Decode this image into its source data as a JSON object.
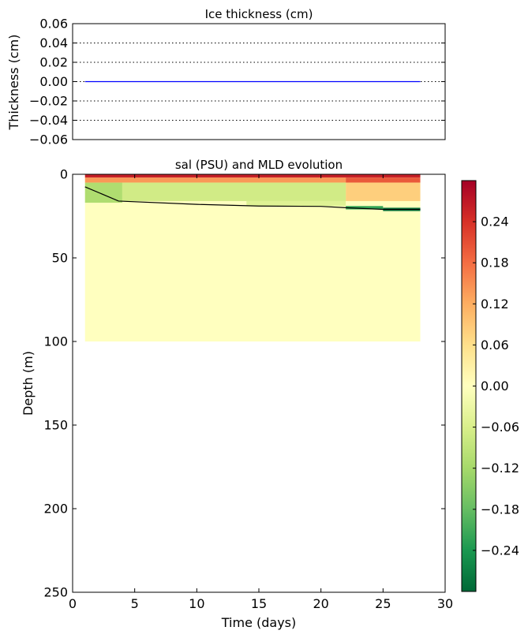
{
  "chart_data": [
    {
      "type": "line",
      "title": "Ice thickness (cm)",
      "ylabel": "Thickness (cm)",
      "xlim": [
        0,
        30
      ],
      "ylim": [
        -0.06,
        0.06
      ],
      "grid": "horizontal-dotted",
      "yticks": [
        "0.06",
        "0.04",
        "0.02",
        "0.00",
        "−0.02",
        "−0.04",
        "−0.06"
      ],
      "ytick_values": [
        0.06,
        0.04,
        0.02,
        0.0,
        -0.02,
        -0.04,
        -0.06
      ],
      "series": [
        {
          "color": "#0000ff",
          "x": [
            1,
            28
          ],
          "y": [
            0.0,
            0.0
          ]
        }
      ]
    },
    {
      "type": "heatmap",
      "title": "sal (PSU) and MLD evolution",
      "xlabel": "Time (days)",
      "ylabel": "Depth (m)",
      "xlim": [
        0,
        30
      ],
      "ylim": [
        250,
        0
      ],
      "xticks": [
        "0",
        "5",
        "10",
        "15",
        "20",
        "25",
        "30"
      ],
      "xtick_values": [
        0,
        5,
        10,
        15,
        20,
        25,
        30
      ],
      "yticks": [
        "0",
        "50",
        "100",
        "150",
        "200",
        "250"
      ],
      "ytick_values": [
        0,
        50,
        100,
        150,
        200,
        250
      ],
      "field_extent": {
        "x": [
          1,
          28
        ],
        "depth": [
          0,
          100
        ]
      },
      "background_value": 0.0,
      "regions": [
        {
          "x": [
            1,
            28
          ],
          "depth": [
            0,
            2
          ],
          "value": 0.26
        },
        {
          "x": [
            1,
            22
          ],
          "depth": [
            2,
            5
          ],
          "value": 0.14
        },
        {
          "x": [
            22,
            28
          ],
          "depth": [
            2,
            5
          ],
          "value": 0.2
        },
        {
          "x": [
            22,
            28
          ],
          "depth": [
            5,
            16
          ],
          "value": 0.08
        },
        {
          "x": [
            1,
            4
          ],
          "depth": [
            5,
            17
          ],
          "value": -0.11
        },
        {
          "x": [
            4,
            22
          ],
          "depth": [
            5,
            16
          ],
          "value": -0.07
        },
        {
          "x": [
            14,
            22
          ],
          "depth": [
            16,
            19
          ],
          "value": -0.05
        },
        {
          "x": [
            22,
            25
          ],
          "depth": [
            19,
            21
          ],
          "value": -0.22
        },
        {
          "x": [
            25,
            28
          ],
          "depth": [
            20,
            22
          ],
          "value": -0.28
        }
      ],
      "mld": {
        "x": [
          1,
          3.7,
          10,
          15,
          20,
          22,
          25,
          28
        ],
        "depth": [
          7.5,
          16,
          18,
          19,
          19.2,
          20,
          21,
          21
        ]
      },
      "colorbar": {
        "colormap": "RdYlGn_r",
        "range": [
          -0.3,
          0.3
        ],
        "ticks": [
          "0.24",
          "0.18",
          "0.12",
          "0.06",
          "0.00",
          "−0.06",
          "−0.12",
          "−0.18",
          "−0.24"
        ],
        "tick_values": [
          0.24,
          0.18,
          0.12,
          0.06,
          0.0,
          -0.06,
          -0.12,
          -0.18,
          -0.24
        ]
      }
    }
  ]
}
